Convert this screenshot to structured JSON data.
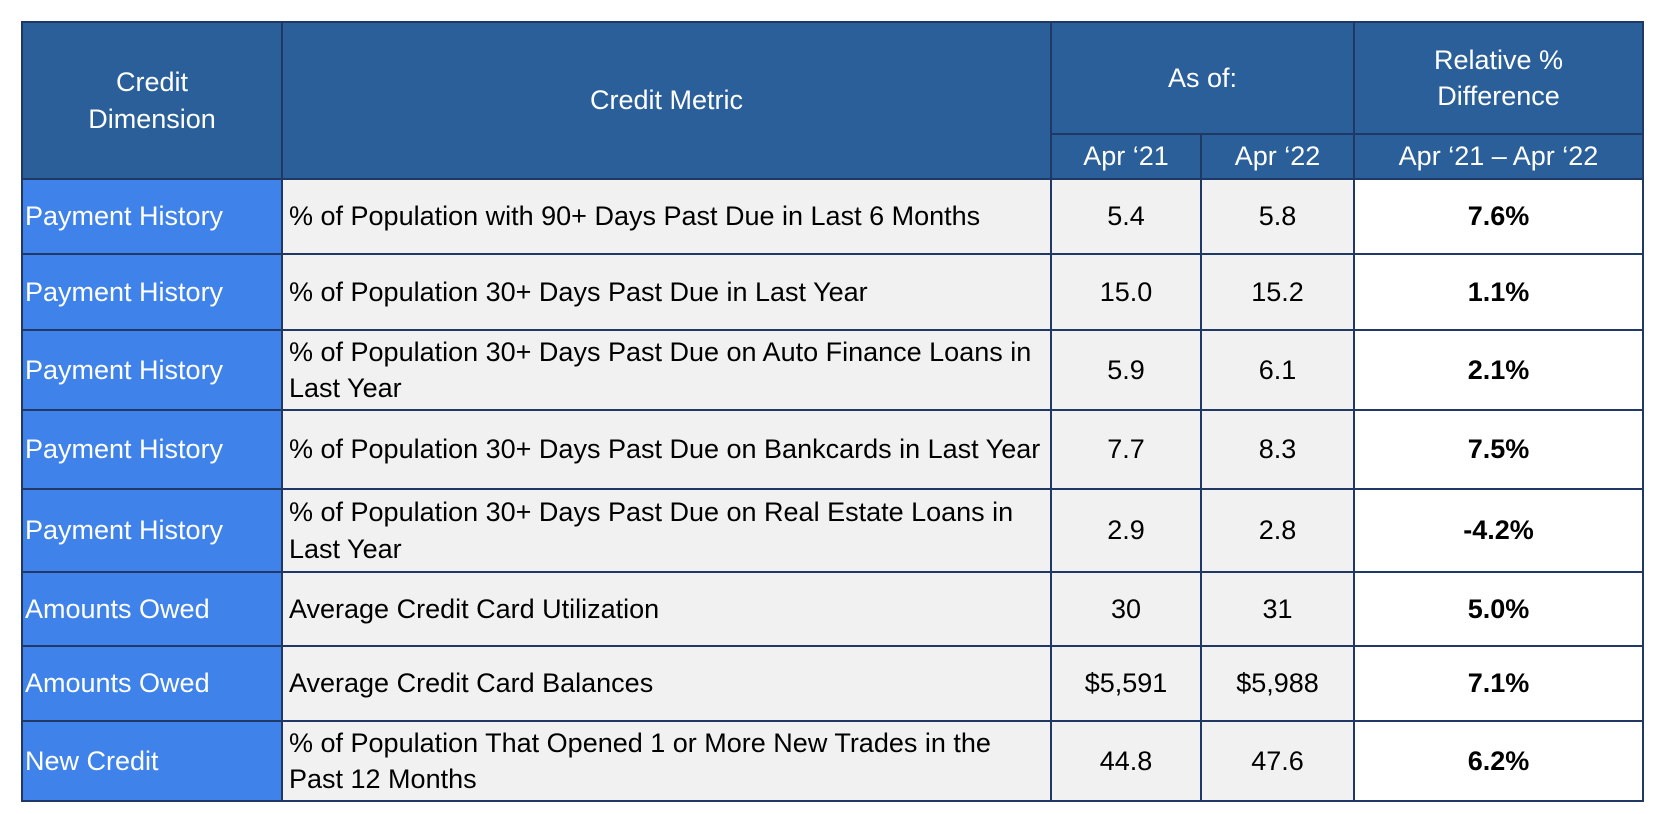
{
  "header": {
    "dimension": "Credit Dimension",
    "metric": "Credit Metric",
    "as_of": "As of:",
    "relative": "Relative % Difference",
    "subheaders": [
      "Apr ‘21",
      "Apr ‘22",
      "Apr ‘21 – Apr ‘22"
    ]
  },
  "table": {
    "rows": [
      [
        "Payment History",
        "% of Population with 90+ Days Past Due in Last 6 Months",
        "5.4",
        "5.8",
        "7.6%"
      ],
      [
        "Payment History",
        "% of Population 30+ Days Past Due in Last Year",
        "15.0",
        "15.2",
        "1.1%"
      ],
      [
        "Payment History",
        "% of Population 30+ Days Past Due on Auto Finance Loans in Last Year",
        "5.9",
        "6.1",
        "2.1%"
      ],
      [
        "Payment History",
        "% of Population 30+ Days Past Due on Bankcards in Last Year",
        "7.7",
        "8.3",
        "7.5%"
      ],
      [
        "Payment History",
        "% of Population 30+ Days Past Due on Real Estate Loans in Last Year",
        "2.9",
        "2.8",
        "-4.2%"
      ],
      [
        "Amounts Owed",
        "Average Credit Card Utilization",
        "30",
        "31",
        "5.0%"
      ],
      [
        "Amounts Owed",
        "Average Credit Card Balances",
        "$5,591",
        "$5,988",
        "7.1%"
      ],
      [
        "New Credit",
        "% of Population That Opened 1 or More New Trades in the Past 12 Months",
        "44.8",
        "47.6",
        "6.2%"
      ]
    ]
  }
}
